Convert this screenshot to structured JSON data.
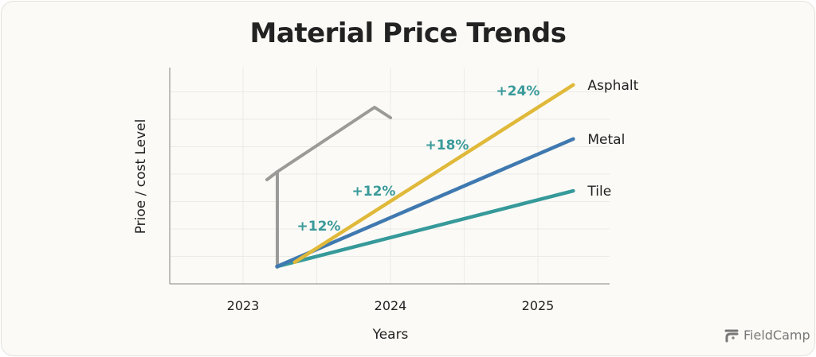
{
  "chart_data": {
    "type": "line",
    "title": "Material Price Trends",
    "xlabel": "Years",
    "ylabel": "Prioe / cost Level",
    "x_ticks": [
      "2023",
      "2024",
      "2025"
    ],
    "xlim": [
      2022.5,
      2025.5
    ],
    "ylim": [
      0,
      100
    ],
    "grid": true,
    "y_tick_labels_shown": false,
    "series": [
      {
        "name": "Asphalt",
        "color": "#e0b93a",
        "x": [
          2023.35,
          2025.24
        ],
        "y": [
          10,
          92
        ]
      },
      {
        "name": "Metal",
        "color": "#3f79b0",
        "x": [
          2023.23,
          2025.24
        ],
        "y": [
          8,
          67
        ]
      },
      {
        "name": "Tile",
        "color": "#36999a",
        "x": [
          2023.23,
          2025.24
        ],
        "y": [
          8,
          43
        ]
      }
    ],
    "annotations": [
      "+12%",
      "+12%",
      "+18%",
      "+24%"
    ],
    "annotation_color": "#3a9a9a",
    "decoration": "house-outline"
  },
  "brand": {
    "name": "FieldCamp"
  }
}
